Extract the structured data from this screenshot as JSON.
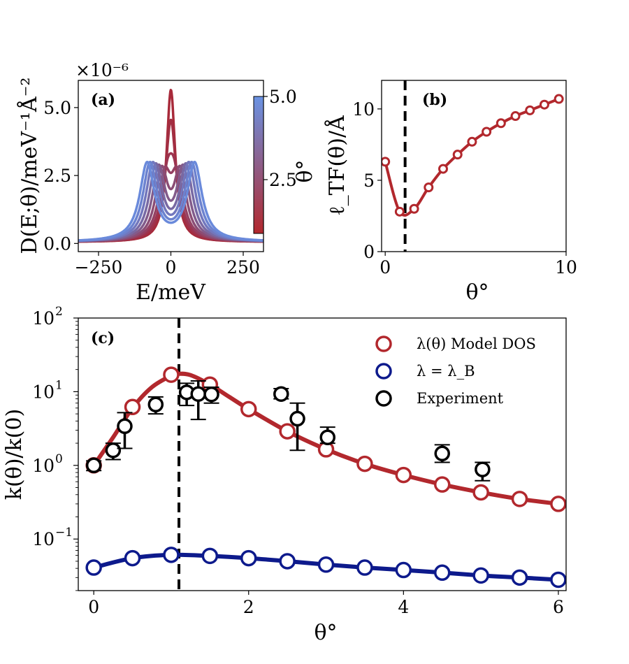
{
  "chart_data": [
    {
      "panel": "a",
      "type": "line",
      "panel_label": "(a)",
      "xlabel": "E/meV",
      "ylabel": "D(E;θ)/meV⁻¹Å⁻²",
      "y_multiplier": "×10⁻⁶",
      "xlim": [
        -320,
        320
      ],
      "ylim": [
        -0.3,
        6.0
      ],
      "xticks": [
        -250,
        0,
        250
      ],
      "xtick_labels": [
        "−250",
        "0",
        "250"
      ],
      "yticks": [
        0,
        2.5,
        5.0
      ],
      "ytick_labels": [
        "0.0",
        "2.5",
        "5.0"
      ],
      "colorbar": {
        "label": "θ°",
        "ticks": [
          "2.5",
          "5.0"
        ],
        "min": 0.3,
        "max": 5.0,
        "color_low": "#b2282d",
        "color_high": "#6a93e3"
      },
      "curve_model": "single Lorentzian peak at E=0 for small θ; two Lorentzian peaks at ±E_p for larger θ; baseline b",
      "series": [
        {
          "theta": 1.0,
          "peak_E": 0,
          "width": 18,
          "peak_height": 5.65,
          "baseline": 0.05,
          "color": "#a82a3a"
        },
        {
          "theta": 1.1,
          "peak_E": 0,
          "width": 22,
          "peak_height": 4.55,
          "baseline": 0.05,
          "color": "#a22e42"
        },
        {
          "theta": 1.5,
          "peak_E": 12,
          "width": 26,
          "peak_height": 3.1,
          "baseline": 0.05,
          "color": "#9c3450"
        },
        {
          "theta": 2.0,
          "peak_E": 22,
          "width": 26,
          "peak_height": 2.8,
          "baseline": 0.05,
          "color": "#944062"
        },
        {
          "theta": 2.5,
          "peak_E": 32,
          "width": 26,
          "peak_height": 2.85,
          "baseline": 0.05,
          "color": "#8b4d75"
        },
        {
          "theta": 3.0,
          "peak_E": 42,
          "width": 27,
          "peak_height": 2.9,
          "baseline": 0.05,
          "color": "#825b8b"
        },
        {
          "theta": 3.5,
          "peak_E": 52,
          "width": 28,
          "peak_height": 2.95,
          "baseline": 0.05,
          "color": "#7869a3"
        },
        {
          "theta": 4.0,
          "peak_E": 62,
          "width": 29,
          "peak_height": 3.0,
          "baseline": 0.05,
          "color": "#7277bd"
        },
        {
          "theta": 4.5,
          "peak_E": 72,
          "width": 30,
          "peak_height": 3.0,
          "baseline": 0.05,
          "color": "#6c82cf"
        },
        {
          "theta": 5.0,
          "peak_E": 82,
          "width": 31,
          "peak_height": 3.0,
          "baseline": 0.05,
          "color": "#6a8adb"
        }
      ]
    },
    {
      "panel": "b",
      "type": "line",
      "panel_label": "(b)",
      "xlabel": "θ°",
      "ylabel": "ℓ_TF(θ)/Å",
      "xlim": [
        -0.2,
        10
      ],
      "ylim": [
        0,
        12
      ],
      "xticks": [
        0,
        10
      ],
      "xtick_labels": [
        "0",
        "10"
      ],
      "yticks": [
        0,
        5,
        10
      ],
      "ytick_labels": [
        "0",
        "5",
        "10"
      ],
      "vline_x": 1.1,
      "color": "#b2282d",
      "x": [
        0.0,
        0.8,
        1.6,
        2.4,
        3.2,
        4.0,
        4.8,
        5.6,
        6.4,
        7.2,
        8.0,
        8.8,
        9.6
      ],
      "y": [
        6.3,
        2.8,
        3.0,
        4.5,
        5.8,
        6.8,
        7.7,
        8.4,
        9.0,
        9.5,
        9.9,
        10.3,
        10.7
      ]
    },
    {
      "panel": "c",
      "type": "scatter",
      "panel_label": "(c)",
      "xlabel": "θ°",
      "ylabel": "k(θ)/k(0)",
      "yscale": "log",
      "xlim": [
        -0.2,
        6.1
      ],
      "ylim_log10": [
        -1.7,
        2
      ],
      "xticks": [
        0,
        2,
        4,
        6
      ],
      "xtick_labels": [
        "0",
        "2",
        "4",
        "6"
      ],
      "yticks_log10": [
        -1,
        0,
        1,
        2
      ],
      "vline_x": 1.1,
      "legend_position": "top-right",
      "series": [
        {
          "name": "λ(θ) Model DOS",
          "color": "#b2282d",
          "x": [
            0,
            0.5,
            1.0,
            1.5,
            2.0,
            2.5,
            3.0,
            3.5,
            4.0,
            4.5,
            5.0,
            5.5,
            6.0
          ],
          "y": [
            1.0,
            6.2,
            17.0,
            12.5,
            5.8,
            2.9,
            1.65,
            1.05,
            0.74,
            0.55,
            0.43,
            0.35,
            0.3
          ],
          "curve_x": [
            0,
            0.25,
            0.5,
            0.75,
            1.0,
            1.1,
            1.25,
            1.5,
            1.75,
            2.0,
            2.5,
            3.0,
            3.5,
            4.0,
            4.5,
            5.0,
            5.5,
            6.0
          ],
          "curve_y": [
            1.0,
            2.4,
            6.0,
            11.5,
            16.5,
            17.5,
            16.8,
            12.5,
            8.5,
            5.8,
            2.9,
            1.65,
            1.05,
            0.74,
            0.55,
            0.43,
            0.35,
            0.3
          ]
        },
        {
          "name": "λ = λ_B",
          "color": "#0d1a8c",
          "x": [
            0,
            0.5,
            1.0,
            1.5,
            2.0,
            2.5,
            3.0,
            3.5,
            4.0,
            4.5,
            5.0,
            5.5,
            6.0
          ],
          "y": [
            0.041,
            0.055,
            0.061,
            0.059,
            0.055,
            0.05,
            0.045,
            0.041,
            0.038,
            0.035,
            0.032,
            0.03,
            0.028
          ],
          "curve_x": [
            0,
            0.5,
            1.0,
            1.5,
            2.0,
            2.5,
            3.0,
            3.5,
            4.0,
            4.5,
            5.0,
            5.5,
            6.0
          ],
          "curve_y": [
            0.041,
            0.055,
            0.061,
            0.059,
            0.055,
            0.05,
            0.045,
            0.041,
            0.038,
            0.035,
            0.032,
            0.03,
            0.028
          ]
        },
        {
          "name": "Experiment",
          "color": "#000000",
          "x": [
            0,
            0.25,
            0.4,
            0.8,
            1.2,
            1.35,
            1.52,
            2.42,
            2.63,
            3.02,
            4.5,
            5.02
          ],
          "y": [
            1.0,
            1.6,
            3.4,
            6.7,
            9.8,
            9.3,
            9.2,
            9.3,
            4.3,
            2.4,
            1.45,
            0.88
          ],
          "y_low": [
            0.85,
            1.2,
            1.7,
            5.0,
            6.5,
            4.2,
            7.0,
            8.0,
            1.6,
            2.0,
            1.1,
            0.62
          ],
          "y_high": [
            1.15,
            2.0,
            5.2,
            8.5,
            13.0,
            14.0,
            11.5,
            11.0,
            7.0,
            3.3,
            1.9,
            1.1
          ]
        }
      ]
    }
  ]
}
